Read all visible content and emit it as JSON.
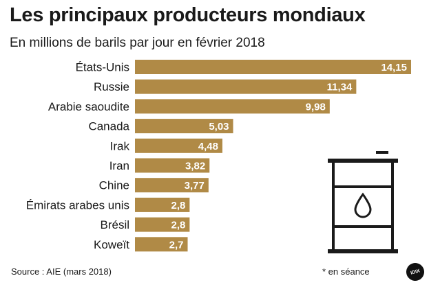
{
  "header": {
    "title": "Les principaux producteurs mondiaux",
    "subtitle": "En millions de barils par jour en février 2018"
  },
  "footer": {
    "source": "Source : AIE (mars 2018)",
    "note": "* en séance",
    "logo_text": "IDIX"
  },
  "colors": {
    "bar": "#b08a46",
    "bar_label": "#ffffff",
    "text": "#1a1a1a"
  },
  "chart_data": {
    "type": "bar",
    "orientation": "horizontal",
    "title": "Les principaux producteurs mondiaux",
    "subtitle": "En millions de barils par jour en février 2018",
    "unit": "millions de barils par jour",
    "categories": [
      "États-Unis",
      "Russie",
      "Arabie saoudite",
      "Canada",
      "Irak",
      "Iran",
      "Chine",
      "Émirats arabes unis",
      "Brésil",
      "Koweït"
    ],
    "values": [
      14.15,
      11.34,
      9.98,
      5.03,
      4.48,
      3.82,
      3.77,
      2.8,
      2.8,
      2.7
    ],
    "value_labels": [
      "14,15",
      "11,34",
      "9,98",
      "5,03",
      "4,48",
      "3,82",
      "3,77",
      "2,8",
      "2,8",
      "2,7"
    ],
    "xlim": [
      0,
      14.15
    ],
    "grid": false,
    "legend": "none"
  }
}
